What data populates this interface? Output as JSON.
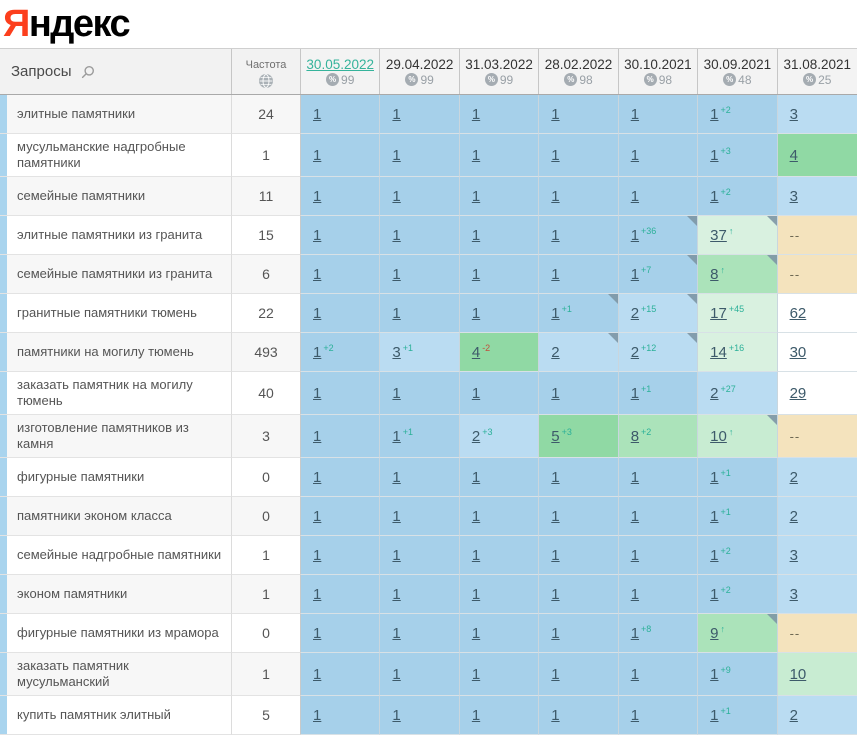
{
  "logo": {
    "first_letter": "Я",
    "rest": "ндекс"
  },
  "header": {
    "queries_label": "Запросы",
    "frequency_label": "Частота",
    "percent_glyph": "%",
    "columns": [
      {
        "date": "30.05.2022",
        "coverage": "99",
        "active": true
      },
      {
        "date": "29.04.2022",
        "coverage": "99",
        "active": false
      },
      {
        "date": "31.03.2022",
        "coverage": "99",
        "active": false
      },
      {
        "date": "28.02.2022",
        "coverage": "98",
        "active": false
      },
      {
        "date": "30.10.2021",
        "coverage": "98",
        "active": false
      },
      {
        "date": "30.09.2021",
        "coverage": "48",
        "active": false
      },
      {
        "date": "31.08.2021",
        "coverage": "25",
        "active": false
      }
    ]
  },
  "colors": {
    "b1": "#a6d0ea",
    "b2": "#badcf2",
    "g1": "#90d9a4",
    "g2": "#abe3ba",
    "g3": "#c8ecd2",
    "g4": "#d9f1e0",
    "w": "#ffffff",
    "t": "#f4e3bd",
    "accent_link": "#35b39b",
    "change_up": "#2bb098",
    "change_down": "#c0503c",
    "logo_red": "#fc3f1d"
  },
  "rows": [
    {
      "keyword": "элитные памятники",
      "frequency": "24",
      "cells": [
        {
          "v": "1"
        },
        {
          "v": "1"
        },
        {
          "v": "1"
        },
        {
          "v": "1"
        },
        {
          "v": "1"
        },
        {
          "v": "1",
          "sup": "+2"
        },
        {
          "v": "3",
          "bg": "b2"
        }
      ]
    },
    {
      "keyword": "мусульманские надгробные памятники",
      "frequency": "1",
      "cells": [
        {
          "v": "1"
        },
        {
          "v": "1"
        },
        {
          "v": "1"
        },
        {
          "v": "1"
        },
        {
          "v": "1"
        },
        {
          "v": "1",
          "sup": "+3"
        },
        {
          "v": "4",
          "bg": "g1"
        }
      ]
    },
    {
      "keyword": "семейные памятники",
      "frequency": "11",
      "cells": [
        {
          "v": "1"
        },
        {
          "v": "1"
        },
        {
          "v": "1"
        },
        {
          "v": "1"
        },
        {
          "v": "1"
        },
        {
          "v": "1",
          "sup": "+2"
        },
        {
          "v": "3",
          "bg": "b2"
        }
      ]
    },
    {
      "keyword": "элитные памятники из гранита",
      "frequency": "15",
      "cells": [
        {
          "v": "1"
        },
        {
          "v": "1"
        },
        {
          "v": "1"
        },
        {
          "v": "1"
        },
        {
          "v": "1",
          "sup": "+36",
          "corner": true
        },
        {
          "v": "37",
          "arrow": true,
          "bg": "g4",
          "corner": true
        },
        {
          "v": "--",
          "bg": "t"
        }
      ]
    },
    {
      "keyword": "семейные памятники из гранита",
      "frequency": "6",
      "cells": [
        {
          "v": "1"
        },
        {
          "v": "1"
        },
        {
          "v": "1"
        },
        {
          "v": "1"
        },
        {
          "v": "1",
          "sup": "+7",
          "corner": true
        },
        {
          "v": "8",
          "arrow": true,
          "bg": "g2",
          "corner": true
        },
        {
          "v": "--",
          "bg": "t"
        }
      ]
    },
    {
      "keyword": "гранитные памятники тюмень",
      "frequency": "22",
      "cells": [
        {
          "v": "1"
        },
        {
          "v": "1"
        },
        {
          "v": "1"
        },
        {
          "v": "1",
          "sup": "+1",
          "corner": true
        },
        {
          "v": "2",
          "sup": "+15",
          "bg": "b2",
          "corner": true
        },
        {
          "v": "17",
          "sup": "+45",
          "bg": "g4"
        },
        {
          "v": "62",
          "bg": "w"
        }
      ]
    },
    {
      "keyword": "памятники на могилу тюмень",
      "frequency": "493",
      "cells": [
        {
          "v": "1",
          "sup": "+2"
        },
        {
          "v": "3",
          "sup": "+1",
          "bg": "b2"
        },
        {
          "v": "4",
          "sup": "-2",
          "supc": "r",
          "bg": "g1"
        },
        {
          "v": "2",
          "bg": "b2",
          "corner": true
        },
        {
          "v": "2",
          "sup": "+12",
          "bg": "b2",
          "corner": true
        },
        {
          "v": "14",
          "sup": "+16",
          "bg": "g4"
        },
        {
          "v": "30",
          "bg": "w"
        }
      ]
    },
    {
      "keyword": "заказать памятник на могилу тюмень",
      "frequency": "40",
      "cells": [
        {
          "v": "1"
        },
        {
          "v": "1"
        },
        {
          "v": "1"
        },
        {
          "v": "1"
        },
        {
          "v": "1",
          "sup": "+1"
        },
        {
          "v": "2",
          "sup": "+27",
          "bg": "b2"
        },
        {
          "v": "29",
          "bg": "w"
        }
      ]
    },
    {
      "keyword": "изготовление памятников из камня",
      "frequency": "3",
      "cells": [
        {
          "v": "1"
        },
        {
          "v": "1",
          "sup": "+1"
        },
        {
          "v": "2",
          "sup": "+3",
          "bg": "b2"
        },
        {
          "v": "5",
          "sup": "+3",
          "bg": "g1"
        },
        {
          "v": "8",
          "sup": "+2",
          "bg": "g2"
        },
        {
          "v": "10",
          "arrow": true,
          "bg": "g3",
          "corner": true
        },
        {
          "v": "--",
          "bg": "t"
        }
      ]
    },
    {
      "keyword": "фигурные памятники",
      "frequency": "0",
      "cells": [
        {
          "v": "1"
        },
        {
          "v": "1"
        },
        {
          "v": "1"
        },
        {
          "v": "1"
        },
        {
          "v": "1"
        },
        {
          "v": "1",
          "sup": "+1"
        },
        {
          "v": "2",
          "bg": "b2"
        }
      ]
    },
    {
      "keyword": "памятники эконом класса",
      "frequency": "0",
      "cells": [
        {
          "v": "1"
        },
        {
          "v": "1"
        },
        {
          "v": "1"
        },
        {
          "v": "1"
        },
        {
          "v": "1"
        },
        {
          "v": "1",
          "sup": "+1"
        },
        {
          "v": "2",
          "bg": "b2"
        }
      ]
    },
    {
      "keyword": "семейные надгробные памятники",
      "frequency": "1",
      "cells": [
        {
          "v": "1"
        },
        {
          "v": "1"
        },
        {
          "v": "1"
        },
        {
          "v": "1"
        },
        {
          "v": "1"
        },
        {
          "v": "1",
          "sup": "+2"
        },
        {
          "v": "3",
          "bg": "b2"
        }
      ]
    },
    {
      "keyword": "эконом памятники",
      "frequency": "1",
      "cells": [
        {
          "v": "1"
        },
        {
          "v": "1"
        },
        {
          "v": "1"
        },
        {
          "v": "1"
        },
        {
          "v": "1"
        },
        {
          "v": "1",
          "sup": "+2"
        },
        {
          "v": "3",
          "bg": "b2"
        }
      ]
    },
    {
      "keyword": "фигурные памятники из мрамора",
      "frequency": "0",
      "cells": [
        {
          "v": "1"
        },
        {
          "v": "1"
        },
        {
          "v": "1"
        },
        {
          "v": "1"
        },
        {
          "v": "1",
          "sup": "+8"
        },
        {
          "v": "9",
          "arrow": true,
          "bg": "g2",
          "corner": true
        },
        {
          "v": "--",
          "bg": "t"
        }
      ]
    },
    {
      "keyword": "заказать памятник мусульманский",
      "frequency": "1",
      "cells": [
        {
          "v": "1"
        },
        {
          "v": "1"
        },
        {
          "v": "1"
        },
        {
          "v": "1"
        },
        {
          "v": "1"
        },
        {
          "v": "1",
          "sup": "+9"
        },
        {
          "v": "10",
          "bg": "g3"
        }
      ]
    },
    {
      "keyword": "купить памятник элитный",
      "frequency": "5",
      "cells": [
        {
          "v": "1"
        },
        {
          "v": "1"
        },
        {
          "v": "1"
        },
        {
          "v": "1"
        },
        {
          "v": "1"
        },
        {
          "v": "1",
          "sup": "+1"
        },
        {
          "v": "2",
          "bg": "b2"
        }
      ]
    }
  ]
}
